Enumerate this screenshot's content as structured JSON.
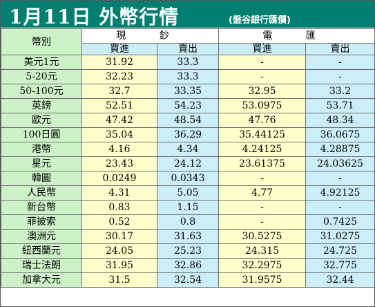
{
  "title": {
    "main": "1月11日 外幣行情",
    "source": "(盤谷銀行匯價)"
  },
  "header": {
    "currency": "幣別",
    "cash": "現 鈔",
    "telegraphic": "電 匯",
    "buy": "買進",
    "sell": "賣出"
  },
  "colors": {
    "title_bg": "#007f71",
    "title_text": "#ffffff",
    "currency_col": "#cdf2c8",
    "buy_col": "#ffffcc",
    "sell_col": "#cceef8"
  },
  "rows": [
    {
      "currency": "美元1元",
      "cash_buy": "31.92",
      "cash_sell": "33.3",
      "tt_buy": "-",
      "tt_sell": "-"
    },
    {
      "currency": "5-20元",
      "cash_buy": "32.23",
      "cash_sell": "33.3",
      "tt_buy": "-",
      "tt_sell": "-"
    },
    {
      "currency": "50-100元",
      "cash_buy": "32.7",
      "cash_sell": "33.35",
      "tt_buy": "32.95",
      "tt_sell": "33.2"
    },
    {
      "currency": "英鎊",
      "cash_buy": "52.51",
      "cash_sell": "54.23",
      "tt_buy": "53.0975",
      "tt_sell": "53.71"
    },
    {
      "currency": "歐元",
      "cash_buy": "47.42",
      "cash_sell": "48.54",
      "tt_buy": "47.76",
      "tt_sell": "48.34"
    },
    {
      "currency": "100日圓",
      "cash_buy": "35.04",
      "cash_sell": "36.29",
      "tt_buy": "35.44125",
      "tt_sell": "36.0675"
    },
    {
      "currency": "港幣",
      "cash_buy": "4.16",
      "cash_sell": "4.34",
      "tt_buy": "4.24125",
      "tt_sell": "4.28875"
    },
    {
      "currency": "星元",
      "cash_buy": "23.43",
      "cash_sell": "24.12",
      "tt_buy": "23.61375",
      "tt_sell": "24.03625"
    },
    {
      "currency": "韓圓",
      "cash_buy": "0.0249",
      "cash_sell": "0.0343",
      "tt_buy": "-",
      "tt_sell": "-"
    },
    {
      "currency": "人民幣",
      "cash_buy": "4.31",
      "cash_sell": "5.05",
      "tt_buy": "4.77",
      "tt_sell": "4.92125"
    },
    {
      "currency": "新台幣",
      "cash_buy": "0.83",
      "cash_sell": "1.15",
      "tt_buy": "-",
      "tt_sell": "-"
    },
    {
      "currency": "菲披索",
      "cash_buy": "0.52",
      "cash_sell": "0.8",
      "tt_buy": "-",
      "tt_sell": "0.7425"
    },
    {
      "currency": "澳洲元",
      "cash_buy": "30.17",
      "cash_sell": "31.63",
      "tt_buy": "30.5275",
      "tt_sell": "31.0275"
    },
    {
      "currency": "紐西蘭元",
      "cash_buy": "24.05",
      "cash_sell": "25.23",
      "tt_buy": "24.315",
      "tt_sell": "24.725"
    },
    {
      "currency": "瑞士法朗",
      "cash_buy": "31.95",
      "cash_sell": "32.86",
      "tt_buy": "32.2975",
      "tt_sell": "32.775"
    },
    {
      "currency": "加拿大元",
      "cash_buy": "31.5",
      "cash_sell": "32.54",
      "tt_buy": "31.9575",
      "tt_sell": "32.44"
    }
  ]
}
